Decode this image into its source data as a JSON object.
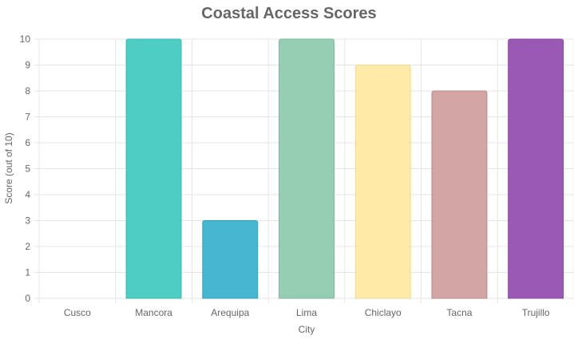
{
  "chart_data": {
    "type": "bar",
    "title": "Coastal Access Scores",
    "xlabel": "City",
    "ylabel": "Score (out of 10)",
    "categories": [
      "Cusco",
      "Mancora",
      "Arequipa",
      "Lima",
      "Chiclayo",
      "Tacna",
      "Trujillo"
    ],
    "values": [
      0,
      10,
      3,
      10,
      9,
      8,
      10
    ],
    "ylim": [
      0,
      10
    ],
    "yticks": [
      "0",
      "1",
      "2",
      "3",
      "4",
      "5",
      "6",
      "7",
      "8",
      "9",
      "10"
    ],
    "grid": true,
    "legend": "none",
    "colors": [
      "#FF6B6B",
      "#4ECDC4",
      "#45B7D1",
      "#96CEB4",
      "#FFEAA7",
      "#D4A5A5",
      "#9B59B6"
    ],
    "border_colors": [
      "#E85555",
      "#3EB8B0",
      "#3AA0B8",
      "#7FB59C",
      "#F2D98C",
      "#B98B8B",
      "#8A48A5"
    ]
  }
}
